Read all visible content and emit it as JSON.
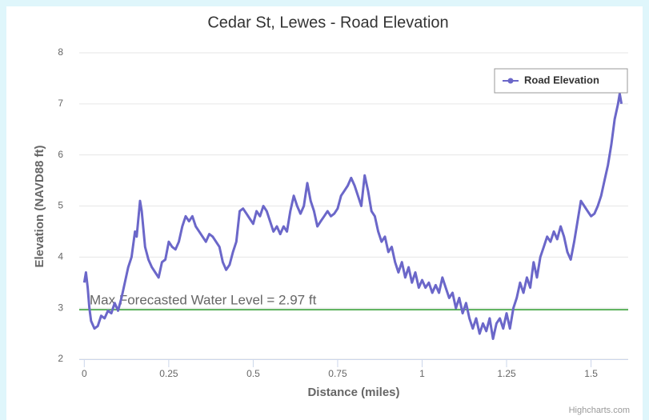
{
  "chart_data": {
    "type": "line",
    "title": "Cedar St, Lewes - Road Elevation",
    "x_label": "Distance (miles)",
    "y_label": "Elevation (NAVD88 ft)",
    "credit": "Highcharts.com",
    "xlim": [
      -0.015,
      1.61
    ],
    "ylim": [
      2,
      8
    ],
    "xticks": [
      0,
      0.25,
      0.5,
      0.75,
      1,
      1.25,
      1.5
    ],
    "yticks": [
      2,
      3,
      4,
      5,
      6,
      7,
      8
    ],
    "grid": true,
    "legend": "top-right",
    "plot_line": {
      "value": 2.97,
      "label": "Max Forecasted Water Level = 2.97 ft",
      "color": "#2a9a2a"
    },
    "series": [
      {
        "name": "Road Elevation",
        "color": "#6b67c9",
        "x": [
          0,
          0.005,
          0.01,
          0.015,
          0.02,
          0.03,
          0.04,
          0.05,
          0.06,
          0.07,
          0.08,
          0.09,
          0.1,
          0.11,
          0.12,
          0.13,
          0.14,
          0.15,
          0.155,
          0.165,
          0.17,
          0.18,
          0.19,
          0.2,
          0.21,
          0.22,
          0.23,
          0.24,
          0.25,
          0.26,
          0.27,
          0.28,
          0.29,
          0.3,
          0.31,
          0.32,
          0.33,
          0.34,
          0.35,
          0.36,
          0.37,
          0.38,
          0.39,
          0.4,
          0.41,
          0.42,
          0.43,
          0.44,
          0.45,
          0.46,
          0.47,
          0.48,
          0.49,
          0.5,
          0.51,
          0.52,
          0.53,
          0.54,
          0.55,
          0.56,
          0.57,
          0.58,
          0.59,
          0.6,
          0.61,
          0.62,
          0.63,
          0.64,
          0.65,
          0.66,
          0.67,
          0.68,
          0.69,
          0.7,
          0.71,
          0.72,
          0.73,
          0.74,
          0.75,
          0.76,
          0.77,
          0.78,
          0.79,
          0.8,
          0.81,
          0.82,
          0.83,
          0.84,
          0.85,
          0.86,
          0.87,
          0.88,
          0.89,
          0.9,
          0.91,
          0.92,
          0.93,
          0.94,
          0.95,
          0.96,
          0.97,
          0.98,
          0.99,
          1,
          1.01,
          1.02,
          1.03,
          1.04,
          1.05,
          1.06,
          1.07,
          1.08,
          1.09,
          1.1,
          1.11,
          1.12,
          1.13,
          1.14,
          1.15,
          1.16,
          1.17,
          1.18,
          1.19,
          1.2,
          1.21,
          1.22,
          1.23,
          1.24,
          1.25,
          1.26,
          1.27,
          1.28,
          1.29,
          1.3,
          1.31,
          1.32,
          1.33,
          1.34,
          1.35,
          1.36,
          1.37,
          1.38,
          1.39,
          1.4,
          1.41,
          1.42,
          1.43,
          1.44,
          1.45,
          1.46,
          1.47,
          1.48,
          1.49,
          1.5,
          1.51,
          1.52,
          1.53,
          1.54,
          1.55,
          1.56,
          1.57,
          1.58,
          1.585,
          1.59
        ],
        "values": [
          3.5,
          3.7,
          3.4,
          3.0,
          2.75,
          2.6,
          2.65,
          2.85,
          2.8,
          2.95,
          2.9,
          3.1,
          2.95,
          3.2,
          3.5,
          3.8,
          4.0,
          4.5,
          4.4,
          5.1,
          4.9,
          4.2,
          3.95,
          3.8,
          3.7,
          3.6,
          3.9,
          3.95,
          4.3,
          4.2,
          4.15,
          4.3,
          4.6,
          4.8,
          4.7,
          4.8,
          4.6,
          4.5,
          4.4,
          4.3,
          4.45,
          4.4,
          4.3,
          4.2,
          3.9,
          3.75,
          3.85,
          4.1,
          4.3,
          4.9,
          4.95,
          4.85,
          4.75,
          4.65,
          4.9,
          4.8,
          5.0,
          4.9,
          4.7,
          4.5,
          4.6,
          4.45,
          4.6,
          4.5,
          4.9,
          5.2,
          5.0,
          4.85,
          5.0,
          5.45,
          5.1,
          4.9,
          4.6,
          4.7,
          4.8,
          4.9,
          4.8,
          4.85,
          4.95,
          5.2,
          5.3,
          5.4,
          5.55,
          5.4,
          5.2,
          5.0,
          5.6,
          5.3,
          4.9,
          4.8,
          4.5,
          4.3,
          4.4,
          4.1,
          4.2,
          3.9,
          3.7,
          3.9,
          3.6,
          3.8,
          3.5,
          3.7,
          3.4,
          3.55,
          3.4,
          3.5,
          3.3,
          3.45,
          3.3,
          3.6,
          3.4,
          3.2,
          3.3,
          3.0,
          3.2,
          2.9,
          3.1,
          2.8,
          2.6,
          2.8,
          2.5,
          2.7,
          2.55,
          2.8,
          2.4,
          2.7,
          2.8,
          2.6,
          2.9,
          2.6,
          3.0,
          3.2,
          3.5,
          3.3,
          3.6,
          3.4,
          3.9,
          3.6,
          4.0,
          4.2,
          4.4,
          4.3,
          4.5,
          4.35,
          4.6,
          4.4,
          4.1,
          3.95,
          4.3,
          4.7,
          5.1,
          5.0,
          4.9,
          4.8,
          4.85,
          5.0,
          5.2,
          5.5,
          5.8,
          6.2,
          6.7,
          7.0,
          7.2,
          7.0
        ]
      }
    ]
  }
}
